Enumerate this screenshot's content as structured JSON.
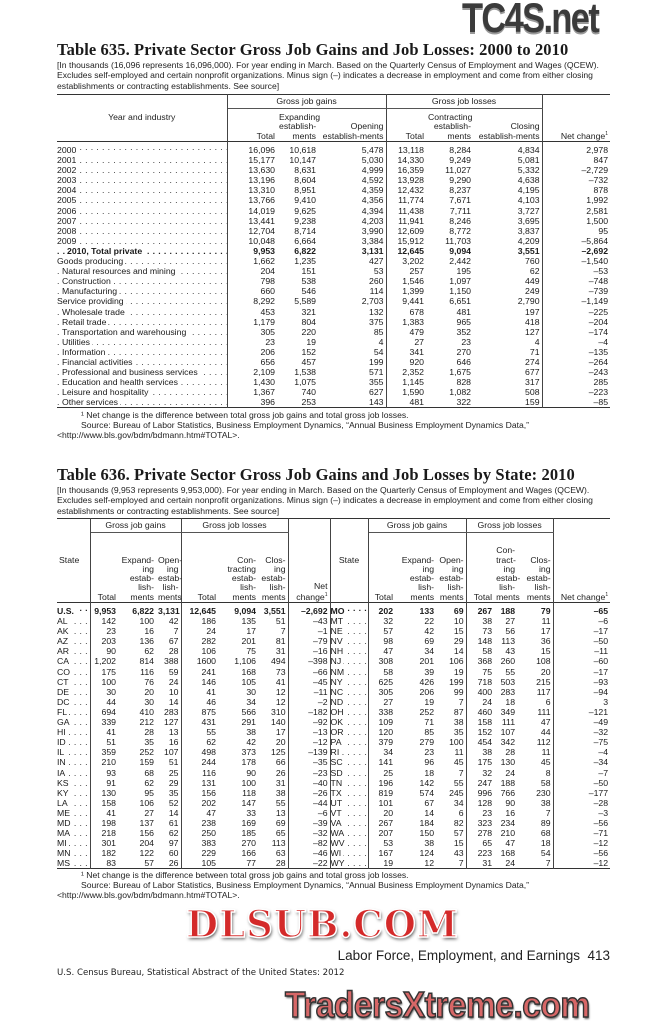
{
  "watermarks": [
    "TC4S.net",
    "DLSUB.COM",
    "TradersXtreme.com"
  ],
  "table635": {
    "title": "Table 635. Private Sector Gross Job Gains and Job Losses: 2000 to 2010",
    "description": "[In thousands (16,096 represents 16,096,000). For year ending in March. Based on the Quarterly Census of Employment and Wages (QCEW). Excludes self-employed and certain nonprofit organizations. Minus sign (–) indicates a decrease in employment and come from either closing establishments or contracting establishments. See source]",
    "headers": {
      "stub": "Year and industry",
      "gains_group": "Gross job gains",
      "losses_group": "Gross job losses",
      "total": "Total",
      "expanding": "Expanding establish-ments",
      "opening": "Opening establish-ments",
      "contracting": "Contracting establish-ments",
      "closing": "Closing establish-ments",
      "net": "Net change",
      "net_note": "1"
    },
    "rows": [
      {
        "label": "2000",
        "indent": 0,
        "bold": false,
        "values": [
          "16,096",
          "10,618",
          "5,478",
          "13,118",
          "8,284",
          "4,834",
          "2,978"
        ]
      },
      {
        "label": "2001",
        "indent": 0,
        "bold": false,
        "values": [
          "15,177",
          "10,147",
          "5,030",
          "14,330",
          "9,249",
          "5,081",
          "847"
        ]
      },
      {
        "label": "2002",
        "indent": 0,
        "bold": false,
        "values": [
          "13,630",
          "8,631",
          "4,999",
          "16,359",
          "11,027",
          "5,332",
          "–2,729"
        ]
      },
      {
        "label": "2003",
        "indent": 0,
        "bold": false,
        "values": [
          "13,196",
          "8,604",
          "4,592",
          "13,928",
          "9,290",
          "4,638",
          "–732"
        ]
      },
      {
        "label": "2004",
        "indent": 0,
        "bold": false,
        "values": [
          "13,310",
          "8,951",
          "4,359",
          "12,432",
          "8,237",
          "4,195",
          "878"
        ]
      },
      {
        "label": "2005",
        "indent": 0,
        "bold": false,
        "values": [
          "13,766",
          "9,410",
          "4,356",
          "11,774",
          "7,671",
          "4,103",
          "1,992"
        ]
      },
      {
        "label": "2006",
        "indent": 0,
        "bold": false,
        "values": [
          "14,019",
          "9,625",
          "4,394",
          "11,438",
          "7,711",
          "3,727",
          "2,581"
        ]
      },
      {
        "label": "2007",
        "indent": 0,
        "bold": false,
        "values": [
          "13,441",
          "9,238",
          "4,203",
          "11,941",
          "8,246",
          "3,695",
          "1,500"
        ]
      },
      {
        "label": "2008",
        "indent": 0,
        "bold": false,
        "values": [
          "12,704",
          "8,714",
          "3,990",
          "12,609",
          "8,772",
          "3,837",
          "95"
        ]
      },
      {
        "label": "2009",
        "indent": 0,
        "bold": false,
        "values": [
          "10,048",
          "6,664",
          "3,384",
          "15,912",
          "11,703",
          "4,209",
          "–5,864"
        ]
      },
      {
        "label": "2010, Total private",
        "indent": 2,
        "bold": true,
        "values": [
          "9,953",
          "6,822",
          "3,131",
          "12,645",
          "9,094",
          "3,551",
          "–2,692"
        ]
      },
      {
        "label": "Goods producing",
        "indent": 0,
        "bold": false,
        "values": [
          "1,662",
          "1,235",
          "427",
          "3,202",
          "2,442",
          "760",
          "–1,540"
        ]
      },
      {
        "label": "Natural resources and mining",
        "indent": 1,
        "bold": false,
        "values": [
          "204",
          "151",
          "53",
          "257",
          "195",
          "62",
          "–53"
        ]
      },
      {
        "label": "Construction",
        "indent": 1,
        "bold": false,
        "values": [
          "798",
          "538",
          "260",
          "1,546",
          "1,097",
          "449",
          "–748"
        ]
      },
      {
        "label": "Manufacturing",
        "indent": 1,
        "bold": false,
        "values": [
          "660",
          "546",
          "114",
          "1,399",
          "1,150",
          "249",
          "–739"
        ]
      },
      {
        "label": "Service providing",
        "indent": 0,
        "bold": false,
        "values": [
          "8,292",
          "5,589",
          "2,703",
          "9,441",
          "6,651",
          "2,790",
          "–1,149"
        ]
      },
      {
        "label": "Wholesale trade",
        "indent": 1,
        "bold": false,
        "values": [
          "453",
          "321",
          "132",
          "678",
          "481",
          "197",
          "–225"
        ]
      },
      {
        "label": "Retail trade",
        "indent": 1,
        "bold": false,
        "values": [
          "1,179",
          "804",
          "375",
          "1,383",
          "965",
          "418",
          "–204"
        ]
      },
      {
        "label": "Transportation and warehousing",
        "indent": 1,
        "bold": false,
        "values": [
          "305",
          "220",
          "85",
          "479",
          "352",
          "127",
          "–174"
        ]
      },
      {
        "label": "Utilities",
        "indent": 1,
        "bold": false,
        "values": [
          "23",
          "19",
          "4",
          "27",
          "23",
          "4",
          "–4"
        ]
      },
      {
        "label": "Information",
        "indent": 1,
        "bold": false,
        "values": [
          "206",
          "152",
          "54",
          "341",
          "270",
          "71",
          "–135"
        ]
      },
      {
        "label": "Financial activities",
        "indent": 1,
        "bold": false,
        "values": [
          "656",
          "457",
          "199",
          "920",
          "646",
          "274",
          "–264"
        ]
      },
      {
        "label": "Professional and business services",
        "indent": 1,
        "bold": false,
        "values": [
          "2,109",
          "1,538",
          "571",
          "2,352",
          "1,675",
          "677",
          "–243"
        ]
      },
      {
        "label": "Education and health services",
        "indent": 1,
        "bold": false,
        "values": [
          "1,430",
          "1,075",
          "355",
          "1,145",
          "828",
          "317",
          "285"
        ]
      },
      {
        "label": "Leisure and hospitality",
        "indent": 1,
        "bold": false,
        "values": [
          "1,367",
          "740",
          "627",
          "1,590",
          "1,082",
          "508",
          "–223"
        ]
      },
      {
        "label": "Other services",
        "indent": 1,
        "bold": false,
        "values": [
          "396",
          "253",
          "143",
          "481",
          "322",
          "159",
          "–85"
        ]
      }
    ],
    "footnote": "¹ Net change is the difference between total gross job gains and total gross job losses.",
    "source": "Source: Bureau of Labor Statistics, Business Employment Dynamics, “Annual Business Employment Dynamics Data,”",
    "url": "<http://www.bls.gov/bdm/bdmann.htm#TOTAL>."
  },
  "table636": {
    "title": "Table 636. Private Sector Gross Job Gains and Job Losses by State: 2010",
    "description": "[In thousands (9,953 represents 9,953,000). For year ending in March. Based on the Quarterly Census of Employment and Wages (QCEW). Excludes self-employed and certain nonprofit organizations. Minus sign (–) indicates a decrease in employment and come from either closing establishments or contracting establishments. See source]",
    "headers": {
      "state": "State",
      "gains_group": "Gross job gains",
      "losses_group": "Gross job losses",
      "total": "Total",
      "expanding": "Expand- ing estab- lish- ments",
      "opening": "Open- ing estab- lish- ments",
      "contracting_left": "Con- tracting estab- lish- ments",
      "contracting_right": "Con- tract- ing estab- lish- ments",
      "closing": "Clos- ing estab- lish- ments",
      "net": "Net change",
      "net_note": "1"
    },
    "left_rows": [
      [
        "U.S.",
        "9,953",
        "6,822",
        "3,131",
        "12,645",
        "9,094",
        "3,551",
        "–2,692"
      ],
      [
        "AL",
        "142",
        "100",
        "42",
        "186",
        "135",
        "51",
        "–43"
      ],
      [
        "AK",
        "23",
        "16",
        "7",
        "24",
        "17",
        "7",
        "–1"
      ],
      [
        "AZ",
        "203",
        "136",
        "67",
        "282",
        "201",
        "81",
        "–79"
      ],
      [
        "AR",
        "90",
        "62",
        "28",
        "106",
        "75",
        "31",
        "–16"
      ],
      [
        "CA",
        "1,202",
        "814",
        "388",
        "1600",
        "1,106",
        "494",
        "–398"
      ],
      [
        "CO",
        "175",
        "116",
        "59",
        "241",
        "168",
        "73",
        "–66"
      ],
      [
        "CT",
        "100",
        "76",
        "24",
        "146",
        "105",
        "41",
        "–45"
      ],
      [
        "DE",
        "30",
        "20",
        "10",
        "41",
        "30",
        "12",
        "–11"
      ],
      [
        "DC",
        "44",
        "30",
        "14",
        "46",
        "34",
        "12",
        "–2"
      ],
      [
        "FL",
        "694",
        "410",
        "283",
        "875",
        "566",
        "310",
        "–182"
      ],
      [
        "GA",
        "339",
        "212",
        "127",
        "431",
        "291",
        "140",
        "–92"
      ],
      [
        "HI",
        "41",
        "28",
        "13",
        "55",
        "38",
        "17",
        "–13"
      ],
      [
        "ID",
        "51",
        "35",
        "16",
        "62",
        "42",
        "20",
        "–12"
      ],
      [
        "IL",
        "359",
        "252",
        "107",
        "498",
        "373",
        "125",
        "–139"
      ],
      [
        "IN",
        "210",
        "159",
        "51",
        "244",
        "178",
        "66",
        "–35"
      ],
      [
        "IA",
        "93",
        "68",
        "25",
        "116",
        "90",
        "26",
        "–23"
      ],
      [
        "KS",
        "91",
        "62",
        "29",
        "131",
        "100",
        "31",
        "–40"
      ],
      [
        "KY",
        "130",
        "95",
        "35",
        "156",
        "118",
        "38",
        "–26"
      ],
      [
        "LA",
        "158",
        "106",
        "52",
        "202",
        "147",
        "55",
        "–44"
      ],
      [
        "ME",
        "41",
        "27",
        "14",
        "47",
        "33",
        "13",
        "–6"
      ],
      [
        "MD",
        "198",
        "137",
        "61",
        "238",
        "169",
        "69",
        "–39"
      ],
      [
        "MA",
        "218",
        "156",
        "62",
        "250",
        "185",
        "65",
        "–32"
      ],
      [
        "MI",
        "301",
        "204",
        "97",
        "383",
        "270",
        "113",
        "–82"
      ],
      [
        "MN",
        "182",
        "122",
        "60",
        "229",
        "166",
        "63",
        "–46"
      ],
      [
        "MS",
        "83",
        "57",
        "26",
        "105",
        "77",
        "28",
        "–22"
      ]
    ],
    "right_rows": [
      [
        "MO",
        "202",
        "133",
        "69",
        "267",
        "188",
        "79",
        "–65"
      ],
      [
        "MT",
        "32",
        "22",
        "10",
        "38",
        "27",
        "11",
        "–6"
      ],
      [
        "NE",
        "57",
        "42",
        "15",
        "73",
        "56",
        "17",
        "–17"
      ],
      [
        "NV",
        "98",
        "69",
        "29",
        "148",
        "113",
        "36",
        "–50"
      ],
      [
        "NH",
        "47",
        "34",
        "14",
        "58",
        "43",
        "15",
        "–11"
      ],
      [
        "NJ",
        "308",
        "201",
        "106",
        "368",
        "260",
        "108",
        "–60"
      ],
      [
        "NM",
        "58",
        "39",
        "19",
        "75",
        "55",
        "20",
        "–17"
      ],
      [
        "NY",
        "625",
        "426",
        "199",
        "718",
        "503",
        "215",
        "–93"
      ],
      [
        "NC",
        "305",
        "206",
        "99",
        "400",
        "283",
        "117",
        "–94"
      ],
      [
        "ND",
        "27",
        "19",
        "7",
        "24",
        "18",
        "6",
        "3"
      ],
      [
        "OH",
        "338",
        "252",
        "87",
        "460",
        "349",
        "111",
        "–121"
      ],
      [
        "OK",
        "109",
        "71",
        "38",
        "158",
        "111",
        "47",
        "–49"
      ],
      [
        "OR",
        "120",
        "85",
        "35",
        "152",
        "107",
        "44",
        "–32"
      ],
      [
        "PA",
        "379",
        "279",
        "100",
        "454",
        "342",
        "112",
        "–75"
      ],
      [
        "RI",
        "34",
        "23",
        "11",
        "38",
        "28",
        "11",
        "–4"
      ],
      [
        "SC",
        "141",
        "96",
        "45",
        "175",
        "130",
        "45",
        "–34"
      ],
      [
        "SD",
        "25",
        "18",
        "7",
        "32",
        "24",
        "8",
        "–7"
      ],
      [
        "TN",
        "196",
        "142",
        "55",
        "247",
        "188",
        "58",
        "–50"
      ],
      [
        "TX",
        "819",
        "574",
        "245",
        "996",
        "766",
        "230",
        "–177"
      ],
      [
        "UT",
        "101",
        "67",
        "34",
        "128",
        "90",
        "38",
        "–28"
      ],
      [
        "VT",
        "20",
        "14",
        "6",
        "23",
        "16",
        "7",
        "–3"
      ],
      [
        "VA",
        "267",
        "184",
        "82",
        "323",
        "234",
        "89",
        "–56"
      ],
      [
        "WA",
        "207",
        "150",
        "57",
        "278",
        "210",
        "68",
        "–71"
      ],
      [
        "WV",
        "53",
        "38",
        "15",
        "65",
        "47",
        "18",
        "–12"
      ],
      [
        "WI",
        "167",
        "124",
        "43",
        "223",
        "168",
        "54",
        "–56"
      ],
      [
        "WY",
        "19",
        "12",
        "7",
        "31",
        "24",
        "7",
        "–12"
      ]
    ],
    "footnote": "¹ Net change is the difference between total gross job gains and total gross job losses.",
    "source": "Source: Bureau of Labor Statistics, Business Employment Dynamics, “Annual Business Employment Dynamics Data,”",
    "url": "<http://www.bls.gov/bdm/bdmann.htm#TOTAL>."
  },
  "page_footer": {
    "running_head": "Labor Force, Employment, and Earnings",
    "page_number": "413",
    "publication": "U.S. Census Bureau, Statistical Abstract of the United States: 2012"
  }
}
